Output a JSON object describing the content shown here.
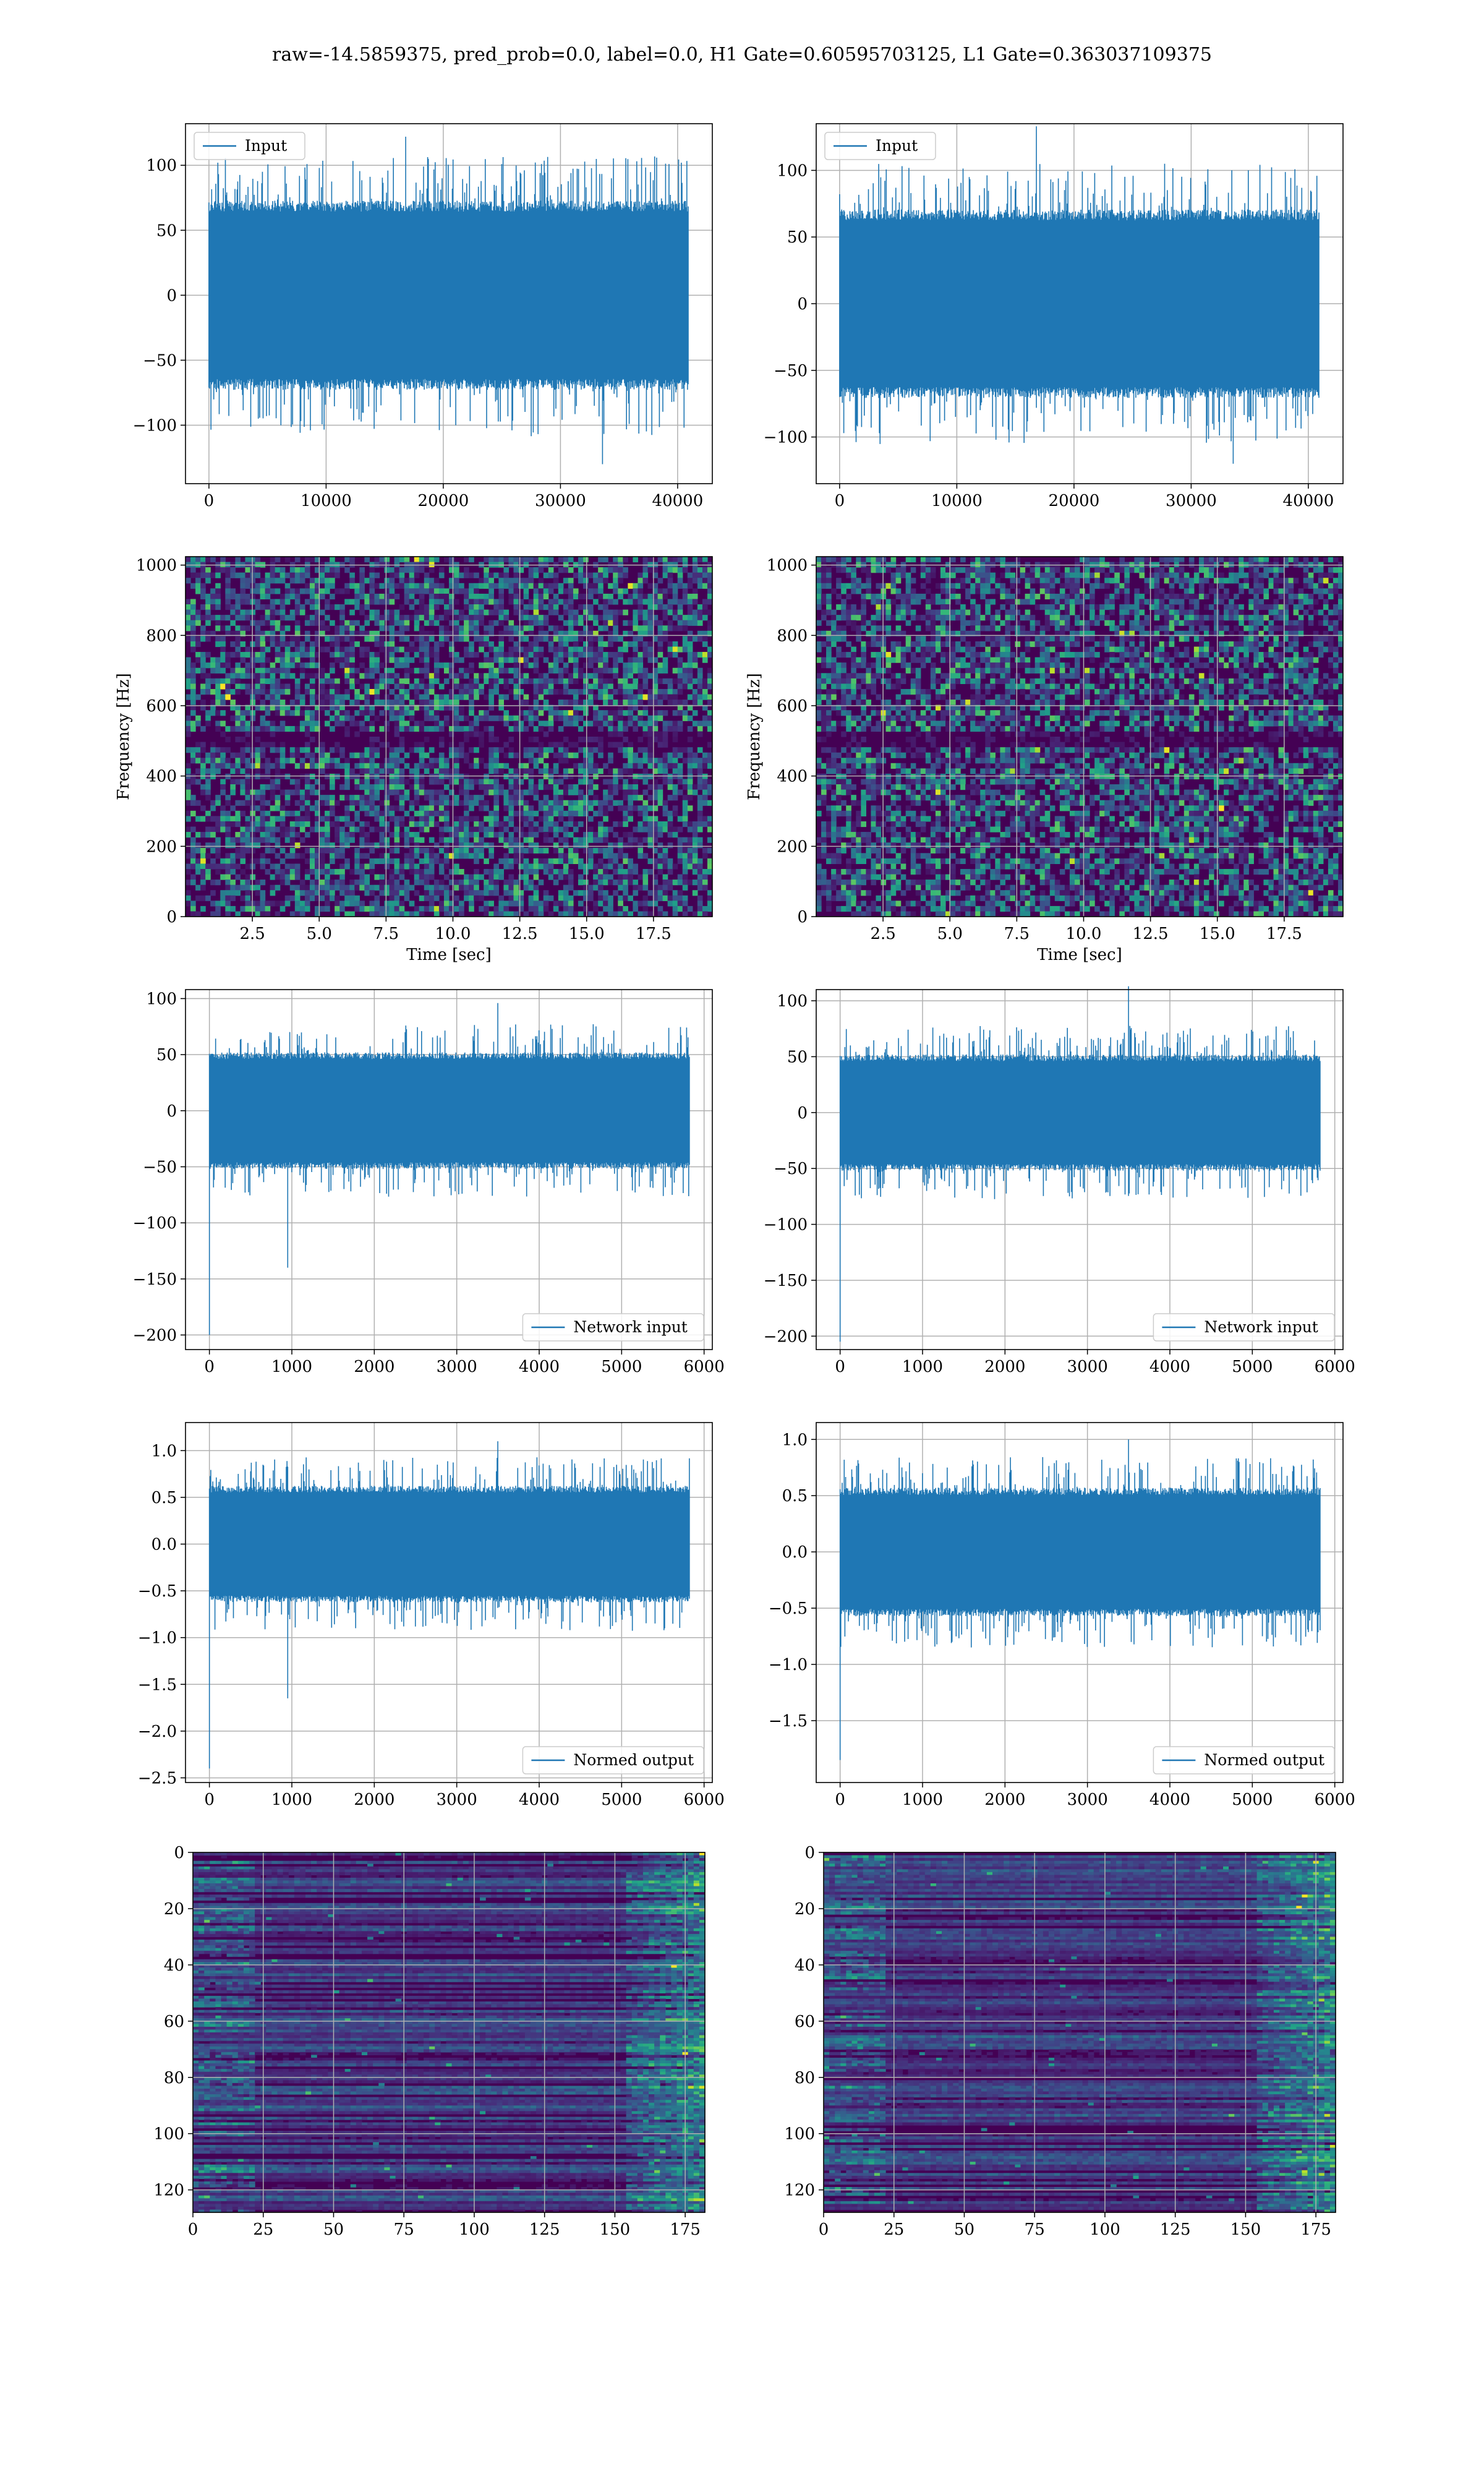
{
  "title": "raw=-14.5859375, pred_prob=0.0, label=0.0, H1 Gate=0.60595703125, L1 Gate=0.363037109375",
  "colors": {
    "series": "#1f77b4",
    "grid": "#b0b0b0",
    "heat_low": "#440154",
    "heat_high": "#fde725"
  },
  "chart_data": [
    {
      "id": "input-h1",
      "type": "line",
      "legend": [
        "Input"
      ],
      "legend_loc": "upper left",
      "grid": true,
      "xlim": [
        -2000,
        42960
      ],
      "ylim": [
        -145,
        132
      ],
      "xticks": [
        0,
        10000,
        20000,
        30000,
        40000
      ],
      "yticks": [
        -100,
        -50,
        0,
        50,
        100
      ],
      "n_points": 40960,
      "y_range_body": [
        -70,
        70
      ],
      "y_extremes": [
        -130,
        122
      ]
    },
    {
      "id": "input-l1",
      "type": "line",
      "legend": [
        "Input"
      ],
      "legend_loc": "upper left",
      "grid": true,
      "xlim": [
        -2000,
        42960
      ],
      "ylim": [
        -135,
        135
      ],
      "xticks": [
        0,
        10000,
        20000,
        30000,
        40000
      ],
      "yticks": [
        -100,
        -50,
        0,
        50,
        100
      ],
      "n_points": 40960,
      "y_range_body": [
        -68,
        68
      ],
      "y_extremes": [
        -120,
        133
      ]
    },
    {
      "id": "spectrogram-h1",
      "type": "heatmap",
      "colormap": "viridis",
      "grid": true,
      "xlabel": "Time [sec]",
      "ylabel": "Frequency [Hz]",
      "xlim": [
        0,
        19.7
      ],
      "ylim": [
        0,
        1024
      ],
      "xticks": [
        2.5,
        5.0,
        7.5,
        10.0,
        12.5,
        15.0,
        17.5
      ],
      "yticks": [
        0,
        200,
        400,
        600,
        800,
        1000
      ],
      "dark_band_hz": [
        480,
        520
      ]
    },
    {
      "id": "spectrogram-l1",
      "type": "heatmap",
      "colormap": "viridis",
      "grid": true,
      "xlabel": "Time [sec]",
      "ylabel": "Frequency [Hz]",
      "xlim": [
        0,
        19.7
      ],
      "ylim": [
        0,
        1024
      ],
      "xticks": [
        2.5,
        5.0,
        7.5,
        10.0,
        12.5,
        15.0,
        17.5
      ],
      "yticks": [
        0,
        200,
        400,
        600,
        800,
        1000
      ],
      "dark_band_hz": [
        480,
        520
      ]
    },
    {
      "id": "network-input-h1",
      "type": "line",
      "legend": [
        "Network input"
      ],
      "legend_loc": "lower right",
      "grid": true,
      "xlim": [
        -290,
        6100
      ],
      "ylim": [
        -213,
        108
      ],
      "xticks": [
        0,
        1000,
        2000,
        3000,
        4000,
        5000,
        6000
      ],
      "yticks": [
        -200,
        -150,
        -100,
        -50,
        0,
        50,
        100
      ],
      "n_points": 5830,
      "y_range_body": [
        -50,
        50
      ],
      "spikes": [
        [
          0,
          -200
        ],
        [
          950,
          -140
        ]
      ],
      "y_max": 96
    },
    {
      "id": "network-input-l1",
      "type": "line",
      "legend": [
        "Network input"
      ],
      "legend_loc": "lower right",
      "grid": true,
      "xlim": [
        -290,
        6100
      ],
      "ylim": [
        -212,
        110
      ],
      "xticks": [
        0,
        1000,
        2000,
        3000,
        4000,
        5000,
        6000
      ],
      "yticks": [
        -200,
        -150,
        -100,
        -50,
        0,
        50,
        100
      ],
      "n_points": 5830,
      "y_range_body": [
        -50,
        50
      ],
      "spikes": [
        [
          0,
          -205
        ]
      ],
      "y_max": 113
    },
    {
      "id": "normed-output-h1",
      "type": "line",
      "legend": [
        "Normed output"
      ],
      "legend_loc": "lower right",
      "grid": true,
      "xlim": [
        -290,
        6100
      ],
      "ylim": [
        -2.55,
        1.3
      ],
      "xticks": [
        0,
        1000,
        2000,
        3000,
        4000,
        5000,
        6000
      ],
      "yticks": [
        -2.5,
        -2.0,
        -1.5,
        -1.0,
        -0.5,
        0.0,
        0.5,
        1.0
      ],
      "n_points": 5830,
      "y_range_body": [
        -0.6,
        0.6
      ],
      "spikes": [
        [
          0,
          -2.4
        ],
        [
          950,
          -1.65
        ]
      ],
      "y_max": 1.1
    },
    {
      "id": "normed-output-l1",
      "type": "line",
      "legend": [
        "Normed output"
      ],
      "legend_loc": "lower right",
      "grid": true,
      "xlim": [
        -290,
        6100
      ],
      "ylim": [
        -2.05,
        1.15
      ],
      "xticks": [
        0,
        1000,
        2000,
        3000,
        4000,
        5000,
        6000
      ],
      "yticks": [
        -1.5,
        -1.0,
        -0.5,
        0.0,
        0.5,
        1.0
      ],
      "n_points": 5830,
      "y_range_body": [
        -0.55,
        0.55
      ],
      "spikes": [
        [
          0,
          -1.85
        ]
      ],
      "y_max": 1.0
    },
    {
      "id": "activations-h1",
      "type": "heatmap",
      "colormap": "viridis",
      "grid": true,
      "xlim": [
        0,
        182
      ],
      "ylim_reversed": [
        0,
        128
      ],
      "xticks": [
        0,
        25,
        50,
        75,
        100,
        125,
        150,
        175
      ],
      "yticks": [
        0,
        20,
        40,
        60,
        80,
        100,
        120
      ],
      "rows": 128,
      "cols": 182
    },
    {
      "id": "activations-l1",
      "type": "heatmap",
      "colormap": "viridis",
      "grid": true,
      "xlim": [
        0,
        182
      ],
      "ylim_reversed": [
        0,
        128
      ],
      "xticks": [
        0,
        25,
        50,
        75,
        100,
        125,
        150,
        175
      ],
      "yticks": [
        0,
        20,
        40,
        60,
        80,
        100,
        120
      ],
      "rows": 128,
      "cols": 182
    }
  ]
}
